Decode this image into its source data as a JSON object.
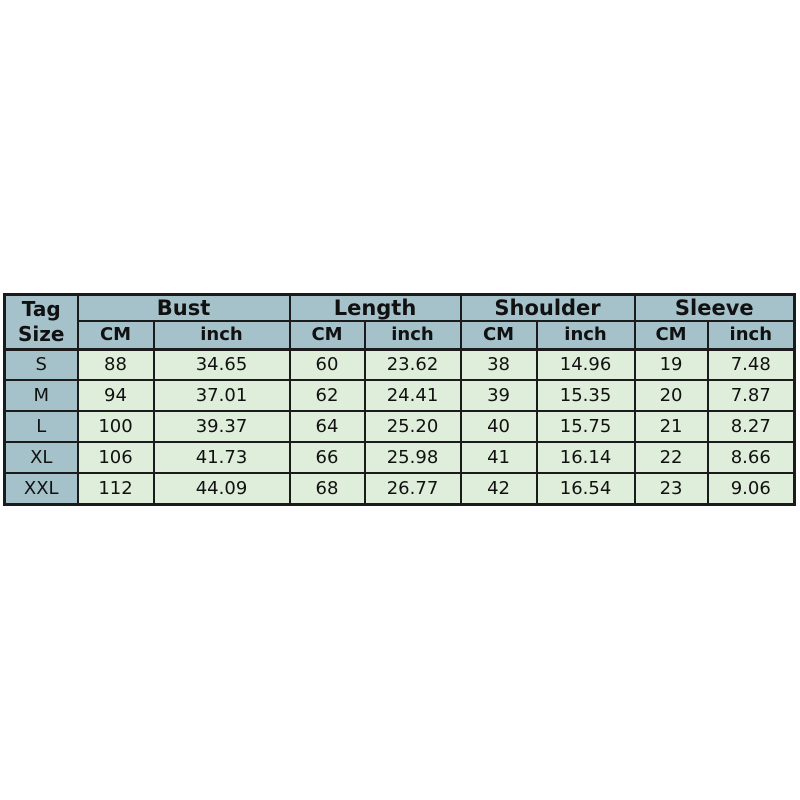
{
  "colors": {
    "header_bg": "#a5c2ca",
    "row_bg": "#dfeeda",
    "border": "#1b1b1b",
    "text": "#111111",
    "page_bg": "#ffffff"
  },
  "chart_data": {
    "type": "table",
    "corner_header": "Tag\nSize",
    "groups": [
      {
        "label": "Bust"
      },
      {
        "label": "Length"
      },
      {
        "label": "Shoulder"
      },
      {
        "label": "Sleeve"
      }
    ],
    "unit_headers": [
      "CM",
      "inch"
    ],
    "columns": [
      "Tag Size",
      "Bust CM",
      "Bust inch",
      "Length CM",
      "Length inch",
      "Shoulder CM",
      "Shoulder inch",
      "Sleeve CM",
      "Sleeve inch"
    ],
    "rows": [
      {
        "size": "S",
        "values": [
          "88",
          "34.65",
          "60",
          "23.62",
          "38",
          "14.96",
          "19",
          "7.48"
        ]
      },
      {
        "size": "M",
        "values": [
          "94",
          "37.01",
          "62",
          "24.41",
          "39",
          "15.35",
          "20",
          "7.87"
        ]
      },
      {
        "size": "L",
        "values": [
          "100",
          "39.37",
          "64",
          "25.20",
          "40",
          "15.75",
          "21",
          "8.27"
        ]
      },
      {
        "size": "XL",
        "values": [
          "106",
          "41.73",
          "66",
          "25.98",
          "41",
          "16.14",
          "22",
          "8.66"
        ]
      },
      {
        "size": "XXL",
        "values": [
          "112",
          "44.09",
          "68",
          "26.77",
          "42",
          "16.54",
          "23",
          "9.06"
        ]
      }
    ]
  }
}
